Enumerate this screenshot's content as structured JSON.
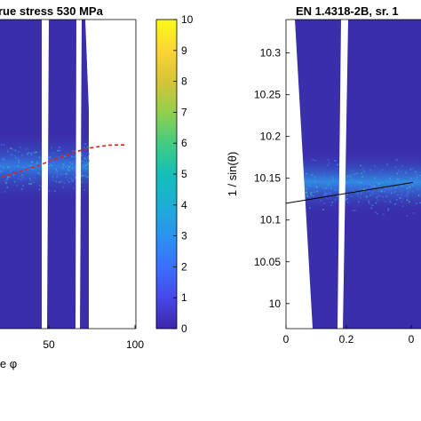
{
  "chart_data": [
    {
      "type": "heatmap",
      "title": "rue stress 530 MPa",
      "xlabel": "le φ",
      "ylabel": "",
      "x_ticks": [
        "50",
        "100"
      ],
      "xlim_visible": [
        5,
        100
      ],
      "colorbar": {
        "colormap": "parula",
        "range": [
          0,
          10
        ],
        "ticks": [
          "0",
          "1",
          "2",
          "3",
          "4",
          "5",
          "6",
          "7",
          "8",
          "9",
          "10"
        ]
      },
      "fit_curve": {
        "style": "dashed",
        "color": "#e02020",
        "x": [
          5,
          15,
          25,
          35,
          45,
          55,
          65,
          75,
          85,
          95
        ],
        "y_relative": [
          0.0,
          0.1,
          0.22,
          0.35,
          0.5,
          0.66,
          0.82,
          0.93,
          0.99,
          1.0
        ]
      }
    },
    {
      "type": "heatmap",
      "title": "EN 1.4318-2B, sr. 1",
      "xlabel": "",
      "ylabel": "1 / sin(θ)",
      "x_ticks": [
        "0",
        "0.2",
        "0"
      ],
      "xlim_visible": [
        0,
        0.42
      ],
      "y_ticks": [
        "10",
        "10.05",
        "10.1",
        "10.15",
        "10.2",
        "10.25",
        "10.3"
      ],
      "ylim": [
        9.97,
        10.34
      ],
      "fit_line": {
        "color": "#000000",
        "x": [
          0.0,
          0.42
        ],
        "y": [
          10.12,
          10.145
        ]
      },
      "intensity_peak_y": 10.14
    }
  ]
}
